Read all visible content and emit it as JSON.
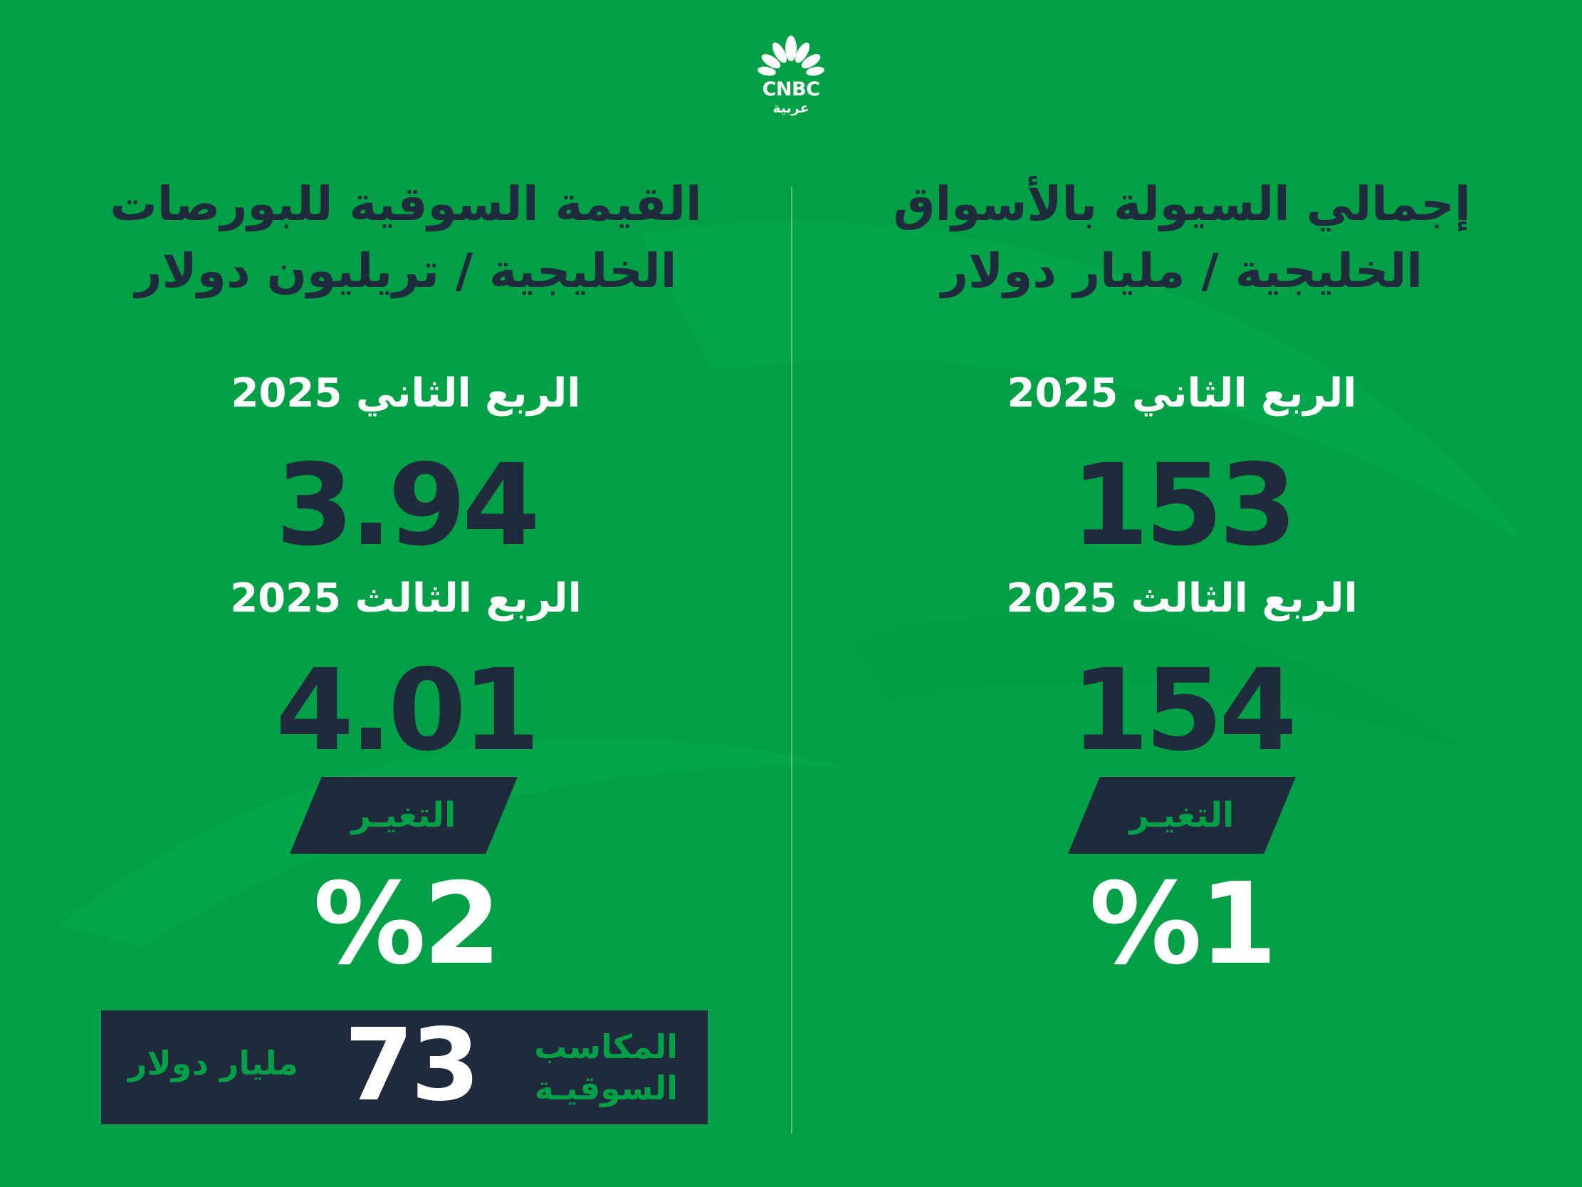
{
  "brand": {
    "logo_text": "CNBC",
    "logo_sub": "عربية"
  },
  "colors": {
    "background": "#02a046",
    "dark": "#1f2a3c",
    "white": "#ffffff"
  },
  "left": {
    "heading_line1": "القيمة السوقية للبورصات",
    "heading_line2": "الخليجية / تريليون دولار",
    "q2_label": "الربع الثاني 2025",
    "q2_value": "3.94",
    "q3_label": "الربع الثالث 2025",
    "q3_value": "4.01",
    "change_label": "التغيـر",
    "change_value": "%2",
    "gains": {
      "title_line1": "المكاسب",
      "title_line2": "السوقيـة",
      "value": "73",
      "unit": "مليار دولار"
    }
  },
  "right": {
    "heading_line1": "إجمالي السيولة بالأسواق",
    "heading_line2": "الخليجية / مليار دولار",
    "q2_label": "الربع الثاني 2025",
    "q2_value": "153",
    "q3_label": "الربع الثالث 2025",
    "q3_value": "154",
    "change_label": "التغيـر",
    "change_value": "%1"
  }
}
